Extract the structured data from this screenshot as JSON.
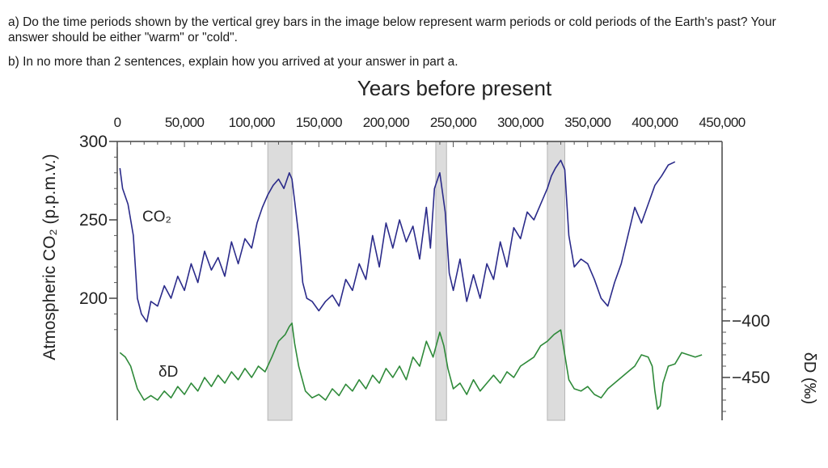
{
  "question": {
    "part_a": "a) Do the time periods shown by the vertical grey bars in the image below represent warm periods or cold periods of the Earth's past? Your answer should be either \"warm\" or \"cold\".",
    "part_b": "b) In no more than 2 sentences, explain how you arrived at your answer in part a."
  },
  "chart_data": {
    "type": "line",
    "title": "Years before present",
    "x_ticks": [
      "0",
      "50,000",
      "100,000",
      "150,000",
      "200,000",
      "250,000",
      "300,000",
      "350,000",
      "400,000",
      "450,000"
    ],
    "xlim": [
      0,
      450000
    ],
    "left_axis": {
      "label": "Atmospheric CO₂ (p.p.m.v.)",
      "ticks": [
        "300",
        "250",
        "200"
      ],
      "ylim": [
        180,
        300
      ]
    },
    "right_axis": {
      "label": "δD (‰)",
      "ticks": [
        "-400",
        "-450"
      ],
      "ylim": [
        -480,
        -380
      ]
    },
    "shaded_periods": [
      {
        "from": 112000,
        "to": 130000,
        "color": "#dcdcdc"
      },
      {
        "from": 237000,
        "to": 245000,
        "color": "#dcdcdc"
      },
      {
        "from": 320000,
        "to": 333000,
        "color": "#dcdcdc"
      }
    ],
    "series": [
      {
        "name": "CO₂",
        "axis": "left",
        "color": "#2b2b8a",
        "x": [
          2000,
          4000,
          8000,
          12000,
          15000,
          18000,
          22000,
          25000,
          30000,
          35000,
          40000,
          45000,
          50000,
          55000,
          60000,
          65000,
          70000,
          75000,
          80000,
          85000,
          90000,
          95000,
          100000,
          104000,
          108000,
          112000,
          116000,
          120000,
          124000,
          128000,
          130000,
          132000,
          135000,
          138000,
          141000,
          145000,
          150000,
          155000,
          160000,
          165000,
          170000,
          175000,
          180000,
          185000,
          190000,
          195000,
          200000,
          205000,
          210000,
          215000,
          220000,
          225000,
          230000,
          233000,
          236000,
          240000,
          244000,
          247000,
          250000,
          255000,
          260000,
          265000,
          270000,
          275000,
          280000,
          285000,
          290000,
          295000,
          300000,
          305000,
          310000,
          315000,
          320000,
          323000,
          326000,
          330000,
          333000,
          336000,
          340000,
          345000,
          350000,
          355000,
          360000,
          365000,
          370000,
          375000,
          380000,
          385000,
          390000,
          395000,
          400000,
          405000,
          410000,
          415000
        ],
        "values": [
          283,
          270,
          260,
          240,
          200,
          190,
          185,
          198,
          195,
          208,
          200,
          214,
          205,
          222,
          210,
          230,
          218,
          226,
          214,
          236,
          222,
          238,
          232,
          248,
          258,
          266,
          272,
          276,
          270,
          280,
          276,
          262,
          240,
          210,
          200,
          198,
          192,
          198,
          202,
          195,
          212,
          205,
          222,
          212,
          240,
          220,
          248,
          232,
          250,
          236,
          246,
          225,
          258,
          232,
          270,
          280,
          255,
          216,
          205,
          225,
          198,
          215,
          200,
          222,
          212,
          236,
          220,
          245,
          238,
          255,
          250,
          260,
          270,
          278,
          283,
          288,
          282,
          240,
          220,
          225,
          222,
          212,
          200,
          195,
          210,
          222,
          240,
          258,
          248,
          260,
          272,
          278,
          285,
          287
        ]
      },
      {
        "name": "δD",
        "axis": "right",
        "color": "#2f8a3a",
        "x": [
          2000,
          6000,
          10000,
          15000,
          20000,
          25000,
          30000,
          35000,
          40000,
          45000,
          50000,
          55000,
          60000,
          65000,
          70000,
          75000,
          80000,
          85000,
          90000,
          95000,
          100000,
          105000,
          110000,
          115000,
          120000,
          125000,
          128000,
          130000,
          132000,
          135000,
          140000,
          145000,
          150000,
          155000,
          160000,
          165000,
          170000,
          175000,
          180000,
          185000,
          190000,
          195000,
          200000,
          205000,
          210000,
          215000,
          220000,
          225000,
          230000,
          235000,
          240000,
          243000,
          246000,
          250000,
          255000,
          260000,
          265000,
          270000,
          275000,
          280000,
          285000,
          290000,
          295000,
          300000,
          305000,
          310000,
          315000,
          320000,
          325000,
          330000,
          333000,
          336000,
          340000,
          345000,
          350000,
          355000,
          360000,
          365000,
          370000,
          375000,
          380000,
          385000,
          390000,
          395000,
          398000,
          400000,
          402000,
          404000,
          406000,
          410000,
          415000,
          420000,
          425000,
          430000,
          435000
        ],
        "values": [
          -428,
          -432,
          -440,
          -460,
          -470,
          -466,
          -470,
          -462,
          -468,
          -458,
          -465,
          -455,
          -462,
          -450,
          -458,
          -448,
          -455,
          -445,
          -452,
          -442,
          -450,
          -440,
          -445,
          -432,
          -418,
          -412,
          -405,
          -402,
          -420,
          -440,
          -462,
          -468,
          -465,
          -470,
          -460,
          -466,
          -456,
          -462,
          -452,
          -460,
          -448,
          -455,
          -442,
          -450,
          -440,
          -452,
          -432,
          -440,
          -418,
          -432,
          -410,
          -422,
          -442,
          -460,
          -455,
          -465,
          -452,
          -462,
          -455,
          -448,
          -455,
          -445,
          -450,
          -440,
          -436,
          -432,
          -422,
          -418,
          -412,
          -408,
          -430,
          -452,
          -460,
          -462,
          -458,
          -465,
          -468,
          -460,
          -455,
          -450,
          -445,
          -440,
          -430,
          -432,
          -440,
          -462,
          -478,
          -475,
          -455,
          -440,
          -438,
          -428,
          -430,
          -432,
          -430
        ]
      }
    ],
    "legend": {
      "placement": "inline labels"
    },
    "grid": false
  }
}
